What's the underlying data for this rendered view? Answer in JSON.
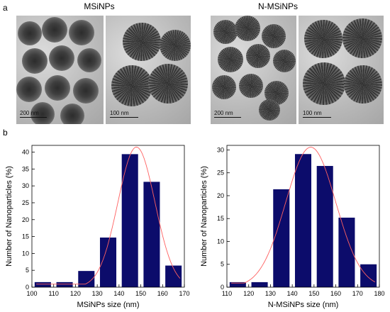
{
  "panel_a_label": "a",
  "panel_b_label": "b",
  "images": [
    {
      "title": "MSiNPs",
      "scale_left": "200 nm",
      "scale_right": "100 nm"
    },
    {
      "title": "N-MSiNPs",
      "scale_left": "200 nm",
      "scale_right": "100 nm"
    }
  ],
  "colors": {
    "bar": "#0c0c6b",
    "fit": "#ff6060"
  },
  "chart_data": [
    {
      "type": "bar",
      "x": [
        105,
        115,
        125,
        135,
        145,
        155,
        165
      ],
      "values": [
        1.5,
        1.5,
        4.8,
        14.7,
        39.4,
        31.2,
        6.4
      ],
      "fit_curve": {
        "type": "gaussian",
        "center": 148,
        "peak": 41.5,
        "sigma": 8.5
      },
      "xlabel": "MSiNPs size (nm)",
      "ylabel": "Number of Nanoparticles (%)",
      "xlim": [
        100,
        170
      ],
      "ylim": [
        0,
        42
      ],
      "xticks": [
        "100",
        "110",
        "120",
        "130",
        "140",
        "150",
        "160",
        "170"
      ],
      "yticks": [
        "0",
        "5",
        "10",
        "15",
        "20",
        "25",
        "30",
        "35",
        "40"
      ]
    },
    {
      "type": "bar",
      "x": [
        115,
        125,
        135,
        145,
        155,
        165,
        175
      ],
      "values": [
        1.1,
        1.1,
        21.4,
        29.1,
        26.5,
        15.2,
        5.0
      ],
      "fit_curve": {
        "type": "gaussian",
        "center": 148.5,
        "peak": 30.6,
        "sigma": 11.5
      },
      "xlabel": "N-MSiNPs size (nm)",
      "ylabel": "Number of Nanoparticles (%)",
      "xlim": [
        110,
        180
      ],
      "ylim": [
        0,
        31
      ],
      "xticks": [
        "110",
        "120",
        "130",
        "140",
        "150",
        "160",
        "170",
        "180"
      ],
      "yticks": [
        "0",
        "5",
        "10",
        "15",
        "20",
        "25",
        "30"
      ]
    }
  ]
}
